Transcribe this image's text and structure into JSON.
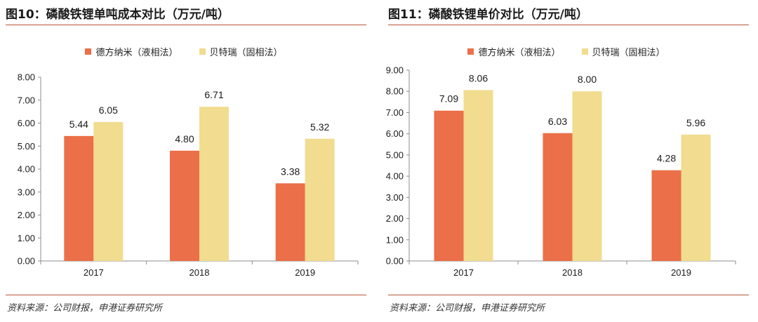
{
  "charts": [
    {
      "title": "图10：磷酸铁锂单吨成本对比（万元/吨）",
      "source": "资料来源：公司财报，申港证券研究所"
    },
    {
      "title": "图11：磷酸铁锂单价对比（万元/吨）",
      "source": "资料来源：公司财报，申港证券研究所"
    }
  ],
  "colors": {
    "series1": "#eb6f48",
    "series2": "#f1dc8f",
    "rule": "#b9553a"
  },
  "chart_data": [
    {
      "type": "bar",
      "title": "图10：磷酸铁锂单吨成本对比（万元/吨）",
      "categories": [
        "2017",
        "2018",
        "2019"
      ],
      "series": [
        {
          "name": "德方纳米（液相法）",
          "values": [
            5.44,
            4.8,
            3.38
          ]
        },
        {
          "name": "贝特瑞（固相法）",
          "values": [
            6.05,
            6.71,
            5.32
          ]
        }
      ],
      "ylim": [
        0,
        8
      ],
      "yticks": [
        "0.00",
        "1.00",
        "2.00",
        "3.00",
        "4.00",
        "5.00",
        "6.00",
        "7.00",
        "8.00"
      ],
      "grid": false,
      "legend": "top"
    },
    {
      "type": "bar",
      "title": "图11：磷酸铁锂单价对比（万元/吨）",
      "categories": [
        "2017",
        "2018",
        "2019"
      ],
      "series": [
        {
          "name": "德方纳米（液相法）",
          "values": [
            7.09,
            6.03,
            4.28
          ]
        },
        {
          "name": "贝特瑞（固相法）",
          "values": [
            8.06,
            8.0,
            5.96
          ]
        }
      ],
      "ylim": [
        0,
        9
      ],
      "yticks": [
        "0.00",
        "1.00",
        "2.00",
        "3.00",
        "4.00",
        "5.00",
        "6.00",
        "7.00",
        "8.00",
        "9.00"
      ],
      "grid": false,
      "legend": "top"
    }
  ]
}
